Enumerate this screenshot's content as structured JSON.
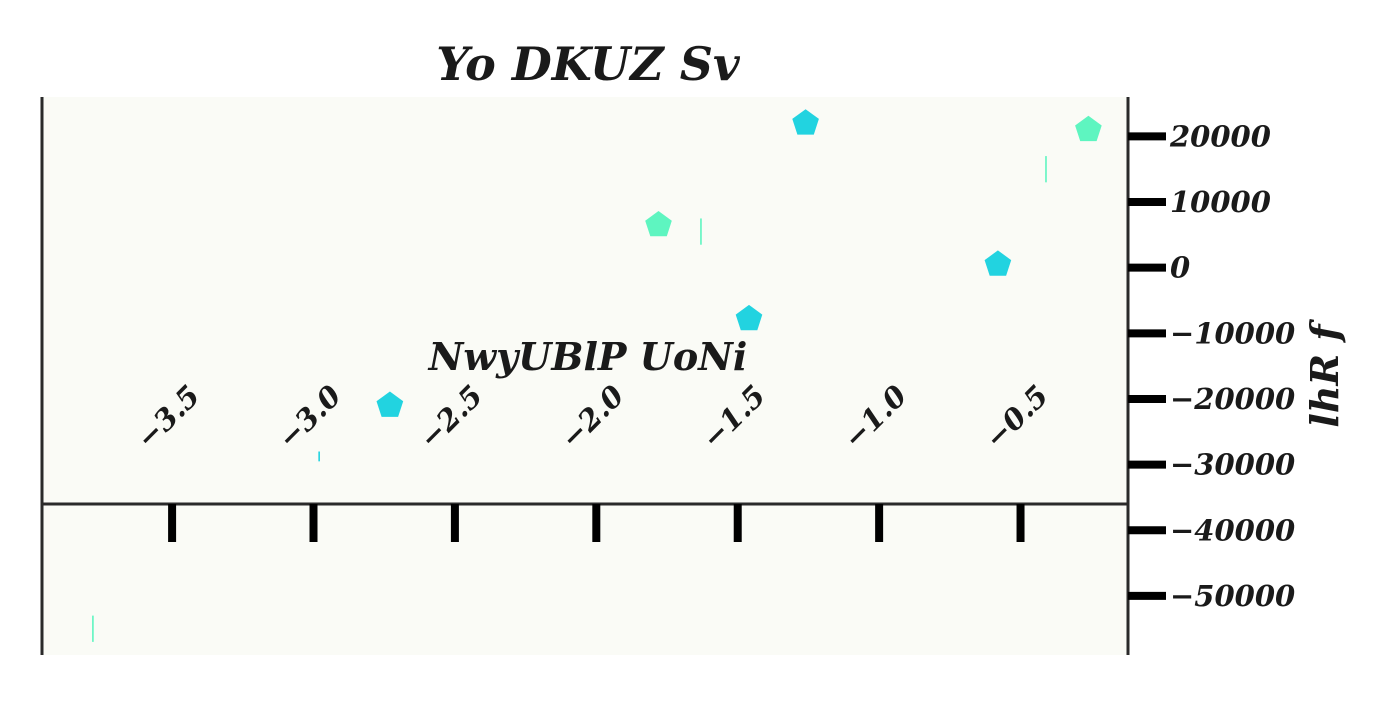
{
  "chart_data": {
    "type": "scatter",
    "title": "Yo DKUZ Sv",
    "xlabel": "NwyUBlP UoNi",
    "ylabel": "lhR f",
    "xlim": [
      -3.96,
      -0.12
    ],
    "ylim": [
      -59000,
      26000
    ],
    "x_ticks": [
      -3.5,
      -3.0,
      -2.5,
      -2.0,
      -1.5,
      -1.0,
      -0.5
    ],
    "x_tick_labels": [
      "−3.5",
      "−3.0",
      "−2.5",
      "−2.0",
      "−1.5",
      "−1.0",
      "−0.5"
    ],
    "y_ticks": [
      20000,
      10000,
      0,
      -10000,
      -20000,
      -30000,
      -40000,
      -50000
    ],
    "y_tick_labels": [
      "20000",
      "10000",
      "0",
      "−10000",
      "−20000",
      "−30000",
      "−40000",
      "−50000"
    ],
    "x_axis_position": "crosses y at -36000",
    "y_axis_position": "right",
    "grid": false,
    "background": "#fafbf6",
    "marker": "pentagon",
    "series": [
      {
        "color": "#22d3e0",
        "points": [
          {
            "x": -2.73,
            "y": -21000
          },
          {
            "x": -1.46,
            "y": -7800
          },
          {
            "x": -1.26,
            "y": 22000
          },
          {
            "x": -0.58,
            "y": 500
          }
        ],
        "vbars": [
          {
            "x": -2.98,
            "y1": -28000,
            "y2": -29500
          }
        ]
      },
      {
        "color": "#5ef5c0",
        "points": [
          {
            "x": -1.78,
            "y": 6500
          },
          {
            "x": -0.26,
            "y": 21000
          }
        ],
        "vbars": [
          {
            "x": -1.63,
            "y1": 3500,
            "y2": 7500
          },
          {
            "x": -0.41,
            "y1": 13000,
            "y2": 17000
          },
          {
            "x": -3.78,
            "y1": -53000,
            "y2": -57000
          }
        ]
      }
    ]
  }
}
